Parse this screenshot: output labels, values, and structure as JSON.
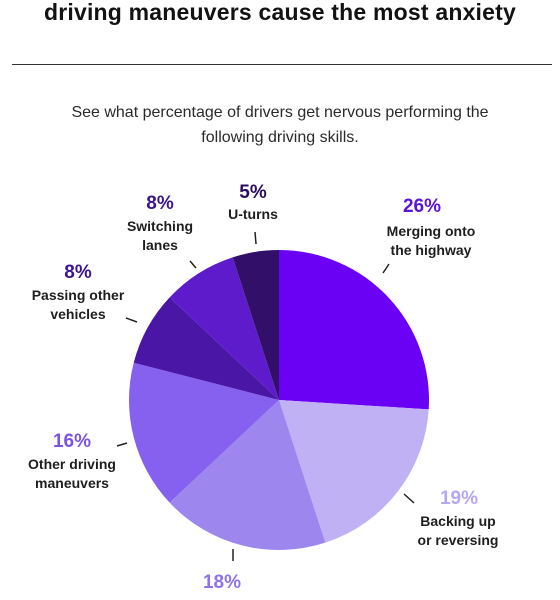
{
  "header": {
    "title": "driving maneuvers cause the most anxiety",
    "subtitle": "See what percentage of drivers get nervous performing the following driving skills."
  },
  "chart_data": {
    "type": "pie",
    "title": "driving maneuvers cause the most anxiety",
    "slices": [
      {
        "label_lines": [
          "Merging onto",
          "the highway"
        ],
        "value": 26,
        "value_label": "26%",
        "color": "#6a00f4",
        "label_color": "#5a14d6"
      },
      {
        "label_lines": [
          "Backing up",
          "or reversing"
        ],
        "value": 19,
        "value_label": "19%",
        "color": "#c0b1f5",
        "label_color": "#b7a6f2"
      },
      {
        "label_lines": [],
        "value": 18,
        "value_label": "18%",
        "color": "#9e86ef",
        "label_color": "#8e72ea"
      },
      {
        "label_lines": [
          "Other driving",
          "maneuvers"
        ],
        "value": 16,
        "value_label": "16%",
        "color": "#8660ee",
        "label_color": "#7a52e8"
      },
      {
        "label_lines": [
          "Passing other",
          "vehicles"
        ],
        "value": 8,
        "value_label": "8%",
        "color": "#4a16a6",
        "label_color": "#3d1390"
      },
      {
        "label_lines": [
          "Switching",
          "lanes"
        ],
        "value": 8,
        "value_label": "8%",
        "color": "#5d1bcc",
        "label_color": "#3d1390"
      },
      {
        "label_lines": [
          "U-turns"
        ],
        "value": 5,
        "value_label": "5%",
        "color": "#321069",
        "label_color": "#2a0e5c"
      }
    ]
  }
}
